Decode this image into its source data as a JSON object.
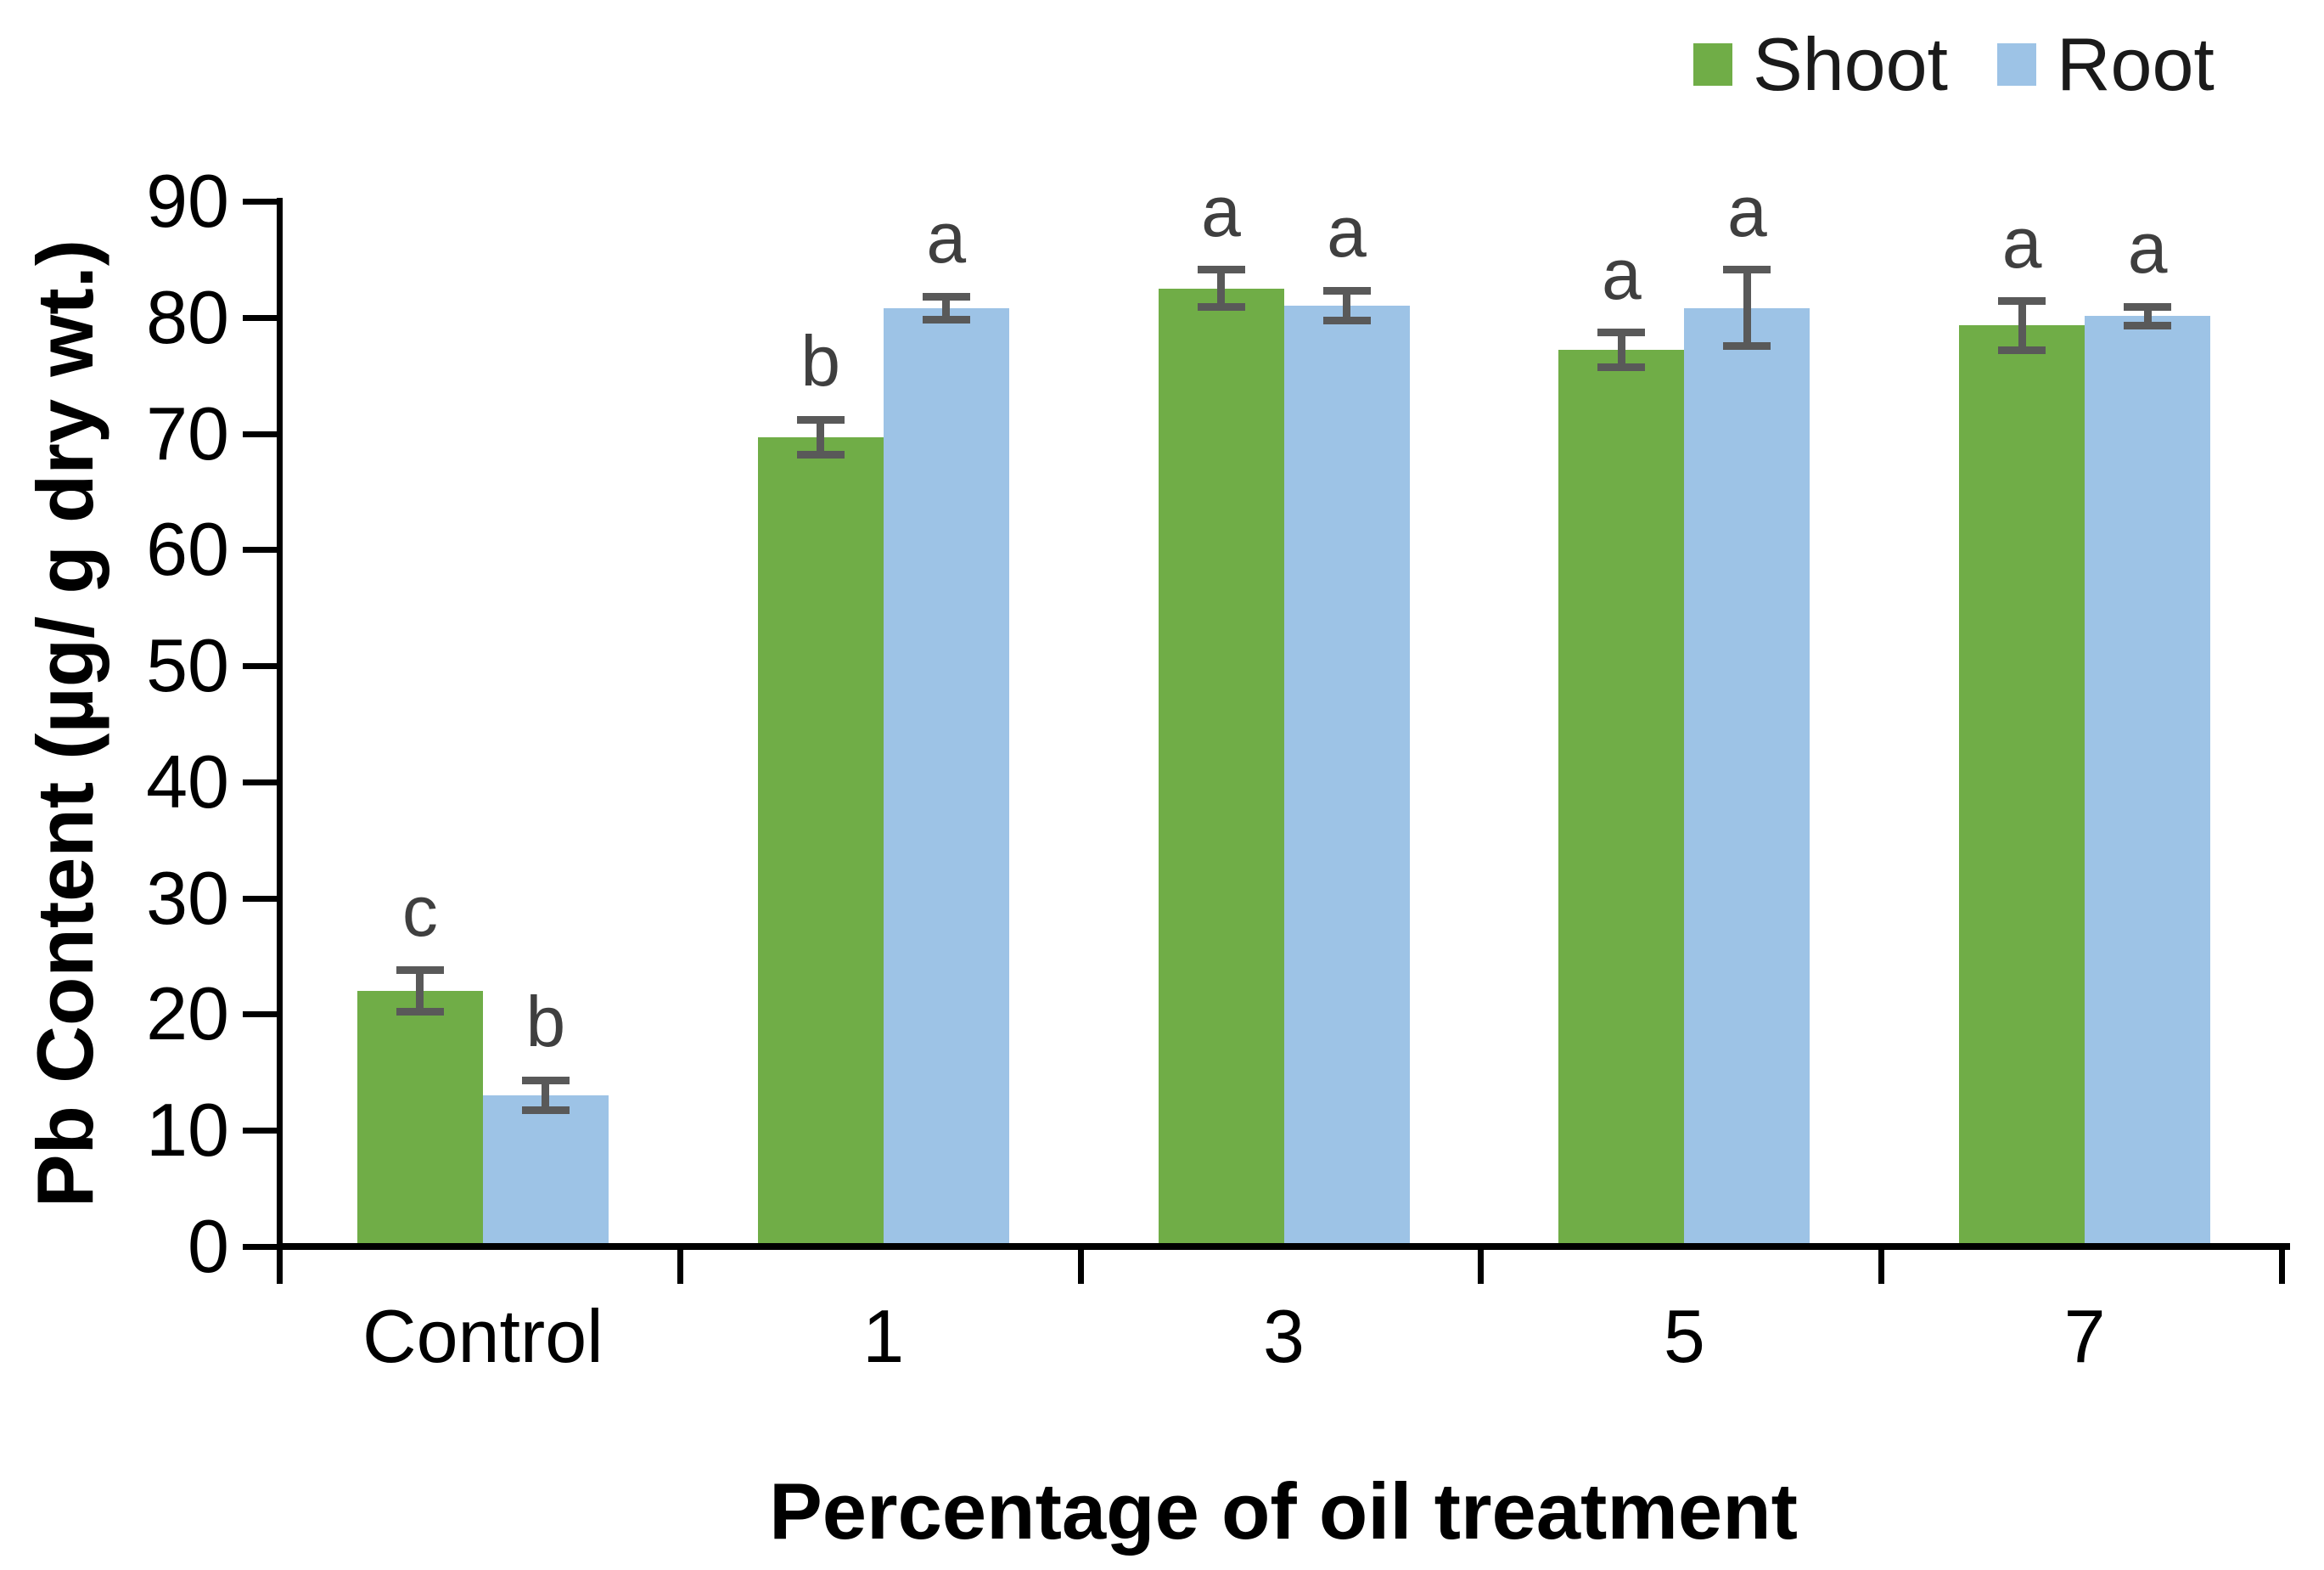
{
  "chart_data": {
    "type": "bar",
    "title": "",
    "xlabel": "Percentage of oil treatment",
    "ylabel": "Pb Content (µg/ g dry wt.)",
    "categories": [
      "Control",
      "1",
      "3",
      "5",
      "7"
    ],
    "series": [
      {
        "name": "Shoot",
        "color": "#70AD47",
        "values": [
          22,
          69.7,
          82.5,
          77.2,
          79.3
        ],
        "errors": [
          1.8,
          1.5,
          1.6,
          1.5,
          2.1
        ],
        "letters": [
          "c",
          "b",
          "a",
          "a",
          "a"
        ]
      },
      {
        "name": "Root",
        "color": "#9DC3E6",
        "values": [
          13,
          80.8,
          81,
          80.8,
          80.1
        ],
        "errors": [
          1.3,
          1.0,
          1.3,
          3.3,
          0.8
        ],
        "letters": [
          "b",
          "a",
          "a",
          "a",
          "a"
        ]
      }
    ],
    "ylim": [
      0,
      90
    ],
    "ytick_step": 10,
    "yticks": [
      0,
      10,
      20,
      30,
      40,
      50,
      60,
      70,
      80,
      90
    ],
    "grid": false,
    "legend_position": "top-right",
    "axis_color": "#000000",
    "error_bar_color": "#595959",
    "letter_color": "#3f3f3f"
  }
}
